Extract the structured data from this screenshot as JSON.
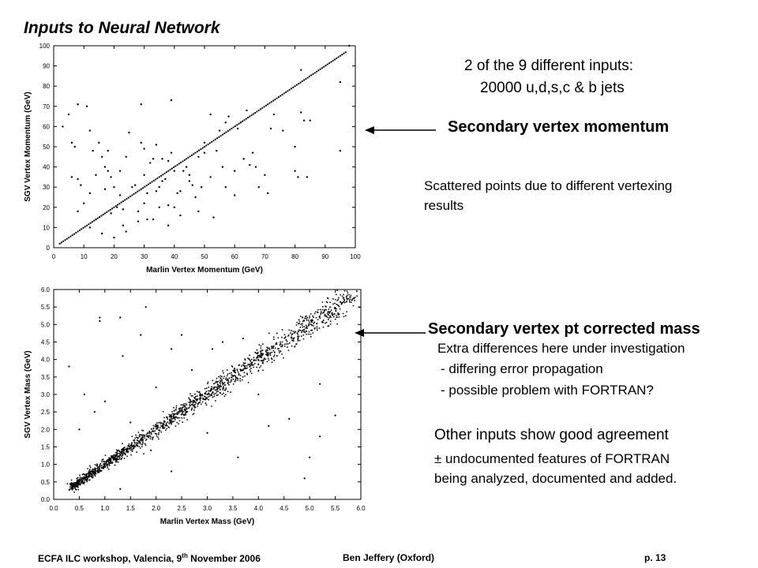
{
  "slide": {
    "title": "Inputs to Neural Network",
    "intro_line1": "2 of the 9 different inputs:",
    "intro_line2": "20000 u,d,s,c & b jets",
    "label_momentum": "Secondary vertex momentum",
    "note_momentum_line1": "Scattered points due to different vertexing",
    "note_momentum_line2": "results",
    "label_mass": "Secondary vertex pt corrected mass",
    "note_mass_line1": "Extra differences here under investigation",
    "note_mass_line2": "- differing error propagation",
    "note_mass_line3": "- possible problem with FORTRAN?",
    "other_line1": "Other inputs show good agreement",
    "other_line2": "± undocumented features of FORTRAN",
    "other_line3": "being analyzed, documented and added.",
    "footer_left_prefix": "ECFA ILC workshop, Valencia, 9",
    "footer_left_sup": "th",
    "footer_left_suffix": " November  2006",
    "footer_center": "Ben Jeffery (Oxford)",
    "footer_right": "p. 13"
  },
  "chart_data": [
    {
      "type": "scatter",
      "title": "",
      "xlabel": "Marlin Vertex Momentum (GeV)",
      "ylabel": "SGV Vertex Momentum (GeV)",
      "xlim": [
        0,
        100
      ],
      "ylim": [
        0,
        100
      ],
      "xticks": [
        "0",
        "10",
        "20",
        "30",
        "40",
        "50",
        "60",
        "70",
        "80",
        "90",
        "100"
      ],
      "yticks": [
        "0",
        "10",
        "20",
        "30",
        "40",
        "50",
        "60",
        "70",
        "80",
        "90",
        "100"
      ],
      "diagonal": {
        "from": 2,
        "to": 97
      },
      "points": [
        [
          3,
          60
        ],
        [
          5,
          66
        ],
        [
          6,
          52
        ],
        [
          6,
          35
        ],
        [
          7,
          50
        ],
        [
          8,
          71
        ],
        [
          8,
          34
        ],
        [
          8,
          18
        ],
        [
          9,
          31
        ],
        [
          10,
          22
        ],
        [
          11,
          70
        ],
        [
          12,
          58
        ],
        [
          12,
          10
        ],
        [
          12,
          27
        ],
        [
          13,
          48
        ],
        [
          14,
          36
        ],
        [
          14,
          14
        ],
        [
          15,
          52
        ],
        [
          16,
          7
        ],
        [
          16,
          45
        ],
        [
          17,
          40
        ],
        [
          17,
          29
        ],
        [
          18,
          48
        ],
        [
          18,
          38
        ],
        [
          19,
          35
        ],
        [
          19,
          17
        ],
        [
          20,
          5
        ],
        [
          20,
          30
        ],
        [
          21,
          20
        ],
        [
          22,
          38
        ],
        [
          22,
          26
        ],
        [
          23,
          11
        ],
        [
          23,
          19
        ],
        [
          24,
          45
        ],
        [
          24,
          8
        ],
        [
          25,
          57
        ],
        [
          26,
          30
        ],
        [
          27,
          31
        ],
        [
          28,
          18
        ],
        [
          28,
          13
        ],
        [
          29,
          71
        ],
        [
          29,
          52
        ],
        [
          30,
          22
        ],
        [
          30,
          49
        ],
        [
          30,
          36
        ],
        [
          31,
          14
        ],
        [
          31,
          27
        ],
        [
          32,
          42
        ],
        [
          33,
          44
        ],
        [
          33,
          14
        ],
        [
          34,
          51
        ],
        [
          34,
          28
        ],
        [
          35,
          30
        ],
        [
          35,
          20
        ],
        [
          36,
          33
        ],
        [
          36,
          44
        ],
        [
          37,
          34
        ],
        [
          38,
          43
        ],
        [
          38,
          21
        ],
        [
          38,
          11
        ],
        [
          39,
          73
        ],
        [
          39,
          47
        ],
        [
          40,
          38
        ],
        [
          40,
          20
        ],
        [
          41,
          27
        ],
        [
          42,
          16
        ],
        [
          42,
          28
        ],
        [
          43,
          38
        ],
        [
          44,
          40
        ],
        [
          45,
          36
        ],
        [
          46,
          31
        ],
        [
          47,
          25
        ],
        [
          48,
          45
        ],
        [
          48,
          18
        ],
        [
          49,
          30
        ],
        [
          50,
          47
        ],
        [
          50,
          52
        ],
        [
          52,
          35
        ],
        [
          53,
          15
        ],
        [
          54,
          48
        ],
        [
          55,
          58
        ],
        [
          56,
          40
        ],
        [
          57,
          30
        ],
        [
          58,
          65
        ],
        [
          60,
          38
        ],
        [
          60,
          26
        ],
        [
          62,
          62
        ],
        [
          63,
          44
        ],
        [
          64,
          68
        ],
        [
          65,
          41
        ],
        [
          66,
          47
        ],
        [
          67,
          40
        ],
        [
          68,
          30
        ],
        [
          70,
          36
        ],
        [
          71,
          27
        ],
        [
          72,
          59
        ],
        [
          73,
          66
        ],
        [
          76,
          58
        ],
        [
          80,
          50
        ],
        [
          80,
          38
        ],
        [
          81,
          35
        ],
        [
          82,
          88
        ],
        [
          82,
          67
        ],
        [
          83,
          63
        ],
        [
          84,
          35
        ],
        [
          85,
          63
        ],
        [
          95,
          82
        ],
        [
          95,
          48
        ],
        [
          98,
          100
        ],
        [
          52,
          66
        ],
        [
          57,
          62
        ],
        [
          61,
          59
        ],
        [
          45,
          33
        ]
      ]
    },
    {
      "type": "scatter",
      "title": "",
      "xlabel": "Marlin Vertex Mass (GeV)",
      "ylabel": "SGV Vertex Mass (GeV)",
      "xlim": [
        0,
        6
      ],
      "ylim": [
        0,
        6
      ],
      "xticks": [
        "0.0",
        "0.5",
        "1.0",
        "1.5",
        "2.0",
        "2.5",
        "3.0",
        "3.5",
        "4.0",
        "4.5",
        "5.0",
        "5.5",
        "6.0"
      ],
      "yticks": [
        "0.0",
        "0.5",
        "1.0",
        "1.5",
        "2.0",
        "2.5",
        "3.0",
        "3.5",
        "4.0",
        "4.5",
        "5.0",
        "5.5",
        "6.0"
      ],
      "band": {
        "from": 0.35,
        "to": 5.9,
        "count": 1600,
        "spread": 0.09
      },
      "outliers": [
        [
          0.3,
          3.8
        ],
        [
          0.9,
          5.2
        ],
        [
          0.9,
          5.1
        ],
        [
          1.3,
          5.2
        ],
        [
          1.35,
          4.1
        ],
        [
          1.5,
          2.2
        ],
        [
          1.7,
          4.7
        ],
        [
          1.8,
          5.5
        ],
        [
          2.3,
          4.3
        ],
        [
          2.5,
          4.7
        ],
        [
          2.7,
          3.7
        ],
        [
          3.1,
          4.3
        ],
        [
          3.3,
          4.5
        ],
        [
          3.7,
          4.6
        ],
        [
          3.6,
          1.2
        ],
        [
          4.2,
          2.1
        ],
        [
          4.6,
          2.3
        ],
        [
          4.9,
          0.6
        ],
        [
          5.2,
          1.8
        ],
        [
          5.2,
          3.3
        ],
        [
          5.5,
          2.4
        ],
        [
          5.0,
          1.2
        ],
        [
          1.3,
          0.3
        ],
        [
          2.3,
          0.8
        ],
        [
          1.9,
          1.4
        ],
        [
          0.8,
          2.5
        ],
        [
          2.0,
          3.2
        ],
        [
          3.0,
          1.9
        ],
        [
          0.6,
          3.0
        ],
        [
          1.0,
          2.8
        ],
        [
          4.0,
          3.0
        ],
        [
          0.5,
          2.0
        ]
      ]
    }
  ]
}
